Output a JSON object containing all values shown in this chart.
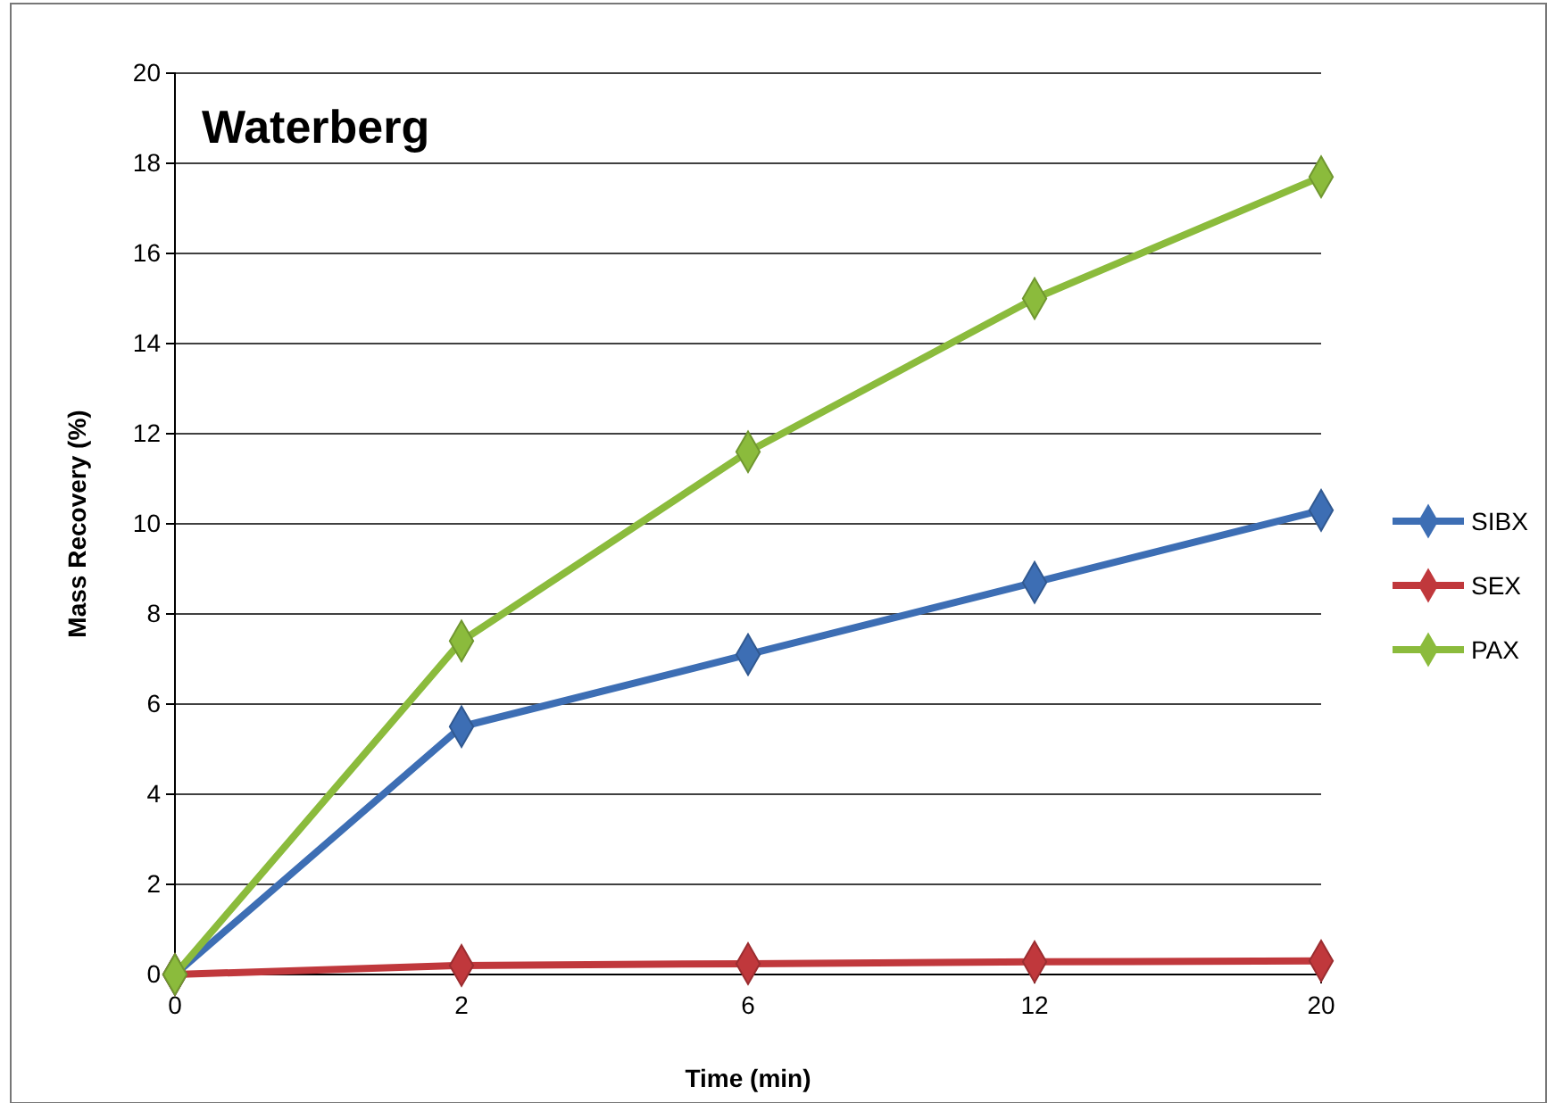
{
  "chart_data": {
    "type": "line",
    "title": "Waterberg",
    "xlabel": "Time (min)",
    "ylabel": "Mass Recovery (%)",
    "categories": [
      "0",
      "2",
      "6",
      "12",
      "20"
    ],
    "series": [
      {
        "name": "SIBX",
        "color": "#3d6eb4",
        "values": [
          0,
          5.5,
          7.1,
          8.7,
          10.3
        ]
      },
      {
        "name": "SEX",
        "color": "#c0383c",
        "values": [
          0,
          0.2,
          0.24,
          0.28,
          0.3
        ]
      },
      {
        "name": "PAX",
        "color": "#8bbb3c",
        "values": [
          0,
          7.4,
          11.6,
          15.0,
          17.7
        ]
      }
    ],
    "ylim": [
      0,
      20
    ],
    "yticks": [
      0,
      2,
      4,
      6,
      8,
      10,
      12,
      14,
      16,
      18,
      20
    ],
    "grid": "y",
    "legend": "right",
    "marker": "diamond",
    "line_style": "solid"
  }
}
